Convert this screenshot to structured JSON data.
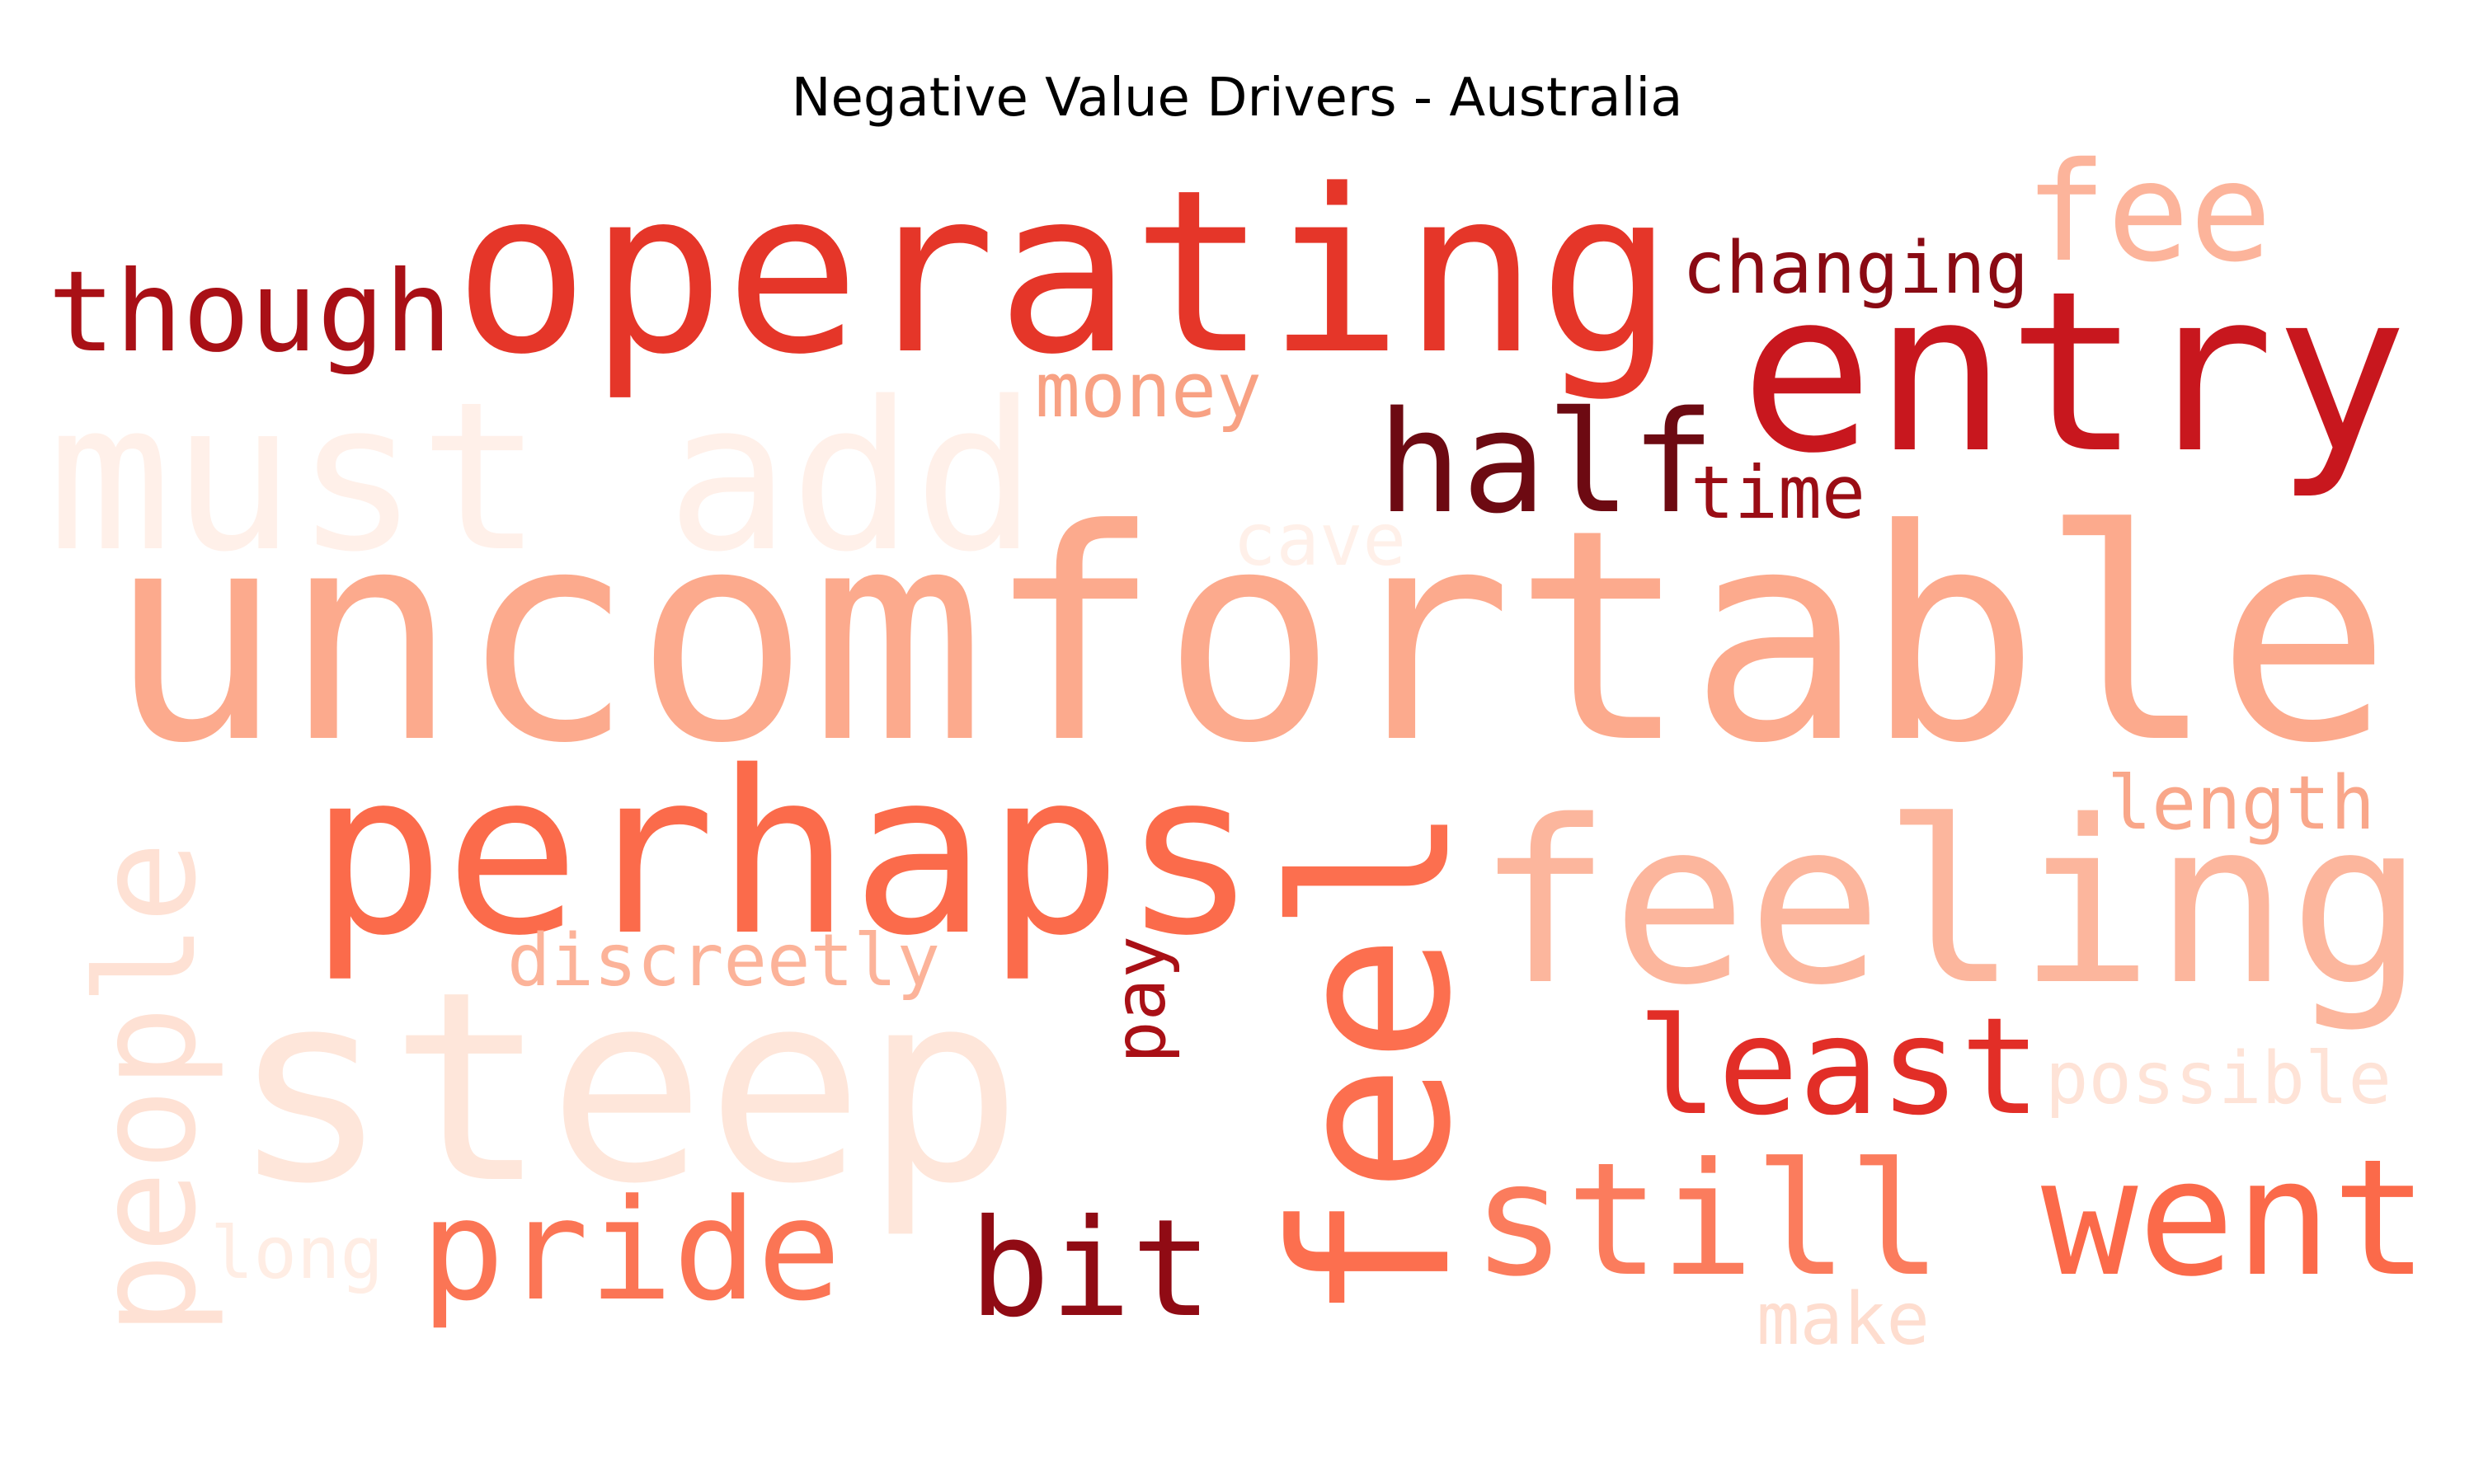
{
  "chart_data": {
    "type": "wordcloud",
    "title": "Negative Value Drivers - Australia",
    "colormap": "Reds",
    "words": [
      {
        "text": "operating",
        "color": "#e53629"
      },
      {
        "text": "though",
        "color": "#a91016"
      },
      {
        "text": "changing",
        "color": "#8a0a13"
      },
      {
        "text": "fee",
        "color": "#fcb49b"
      },
      {
        "text": "entry",
        "color": "#c8171e"
      },
      {
        "text": "money",
        "color": "#f8a183"
      },
      {
        "text": "half",
        "color": "#6d0a12"
      },
      {
        "text": "time",
        "color": "#9a0d15"
      },
      {
        "text": "must add",
        "color": "#fff0e9"
      },
      {
        "text": "cave",
        "color": "#fff0e9"
      },
      {
        "text": "uncomfortable",
        "color": "#fcaa8d"
      },
      {
        "text": "perhaps",
        "color": "#fb6b4b"
      },
      {
        "text": "length",
        "color": "#f9a78a"
      },
      {
        "text": "feeling",
        "color": "#fcb69d"
      },
      {
        "text": "people",
        "color": "#fee1d4"
      },
      {
        "text": "discreetly",
        "color": "#fcb399"
      },
      {
        "text": "pay",
        "color": "#a91016"
      },
      {
        "text": "feel",
        "color": "#fc6f4f"
      },
      {
        "text": "steep",
        "color": "#fee6da"
      },
      {
        "text": "least",
        "color": "#e22e27"
      },
      {
        "text": "possible",
        "color": "#fee3d7"
      },
      {
        "text": "long",
        "color": "#ffede4"
      },
      {
        "text": "pride",
        "color": "#fb7555"
      },
      {
        "text": "bit",
        "color": "#900b14"
      },
      {
        "text": "still",
        "color": "#fb7c5d"
      },
      {
        "text": "went",
        "color": "#fb6a4a"
      },
      {
        "text": "make",
        "color": "#feddcf"
      }
    ]
  }
}
